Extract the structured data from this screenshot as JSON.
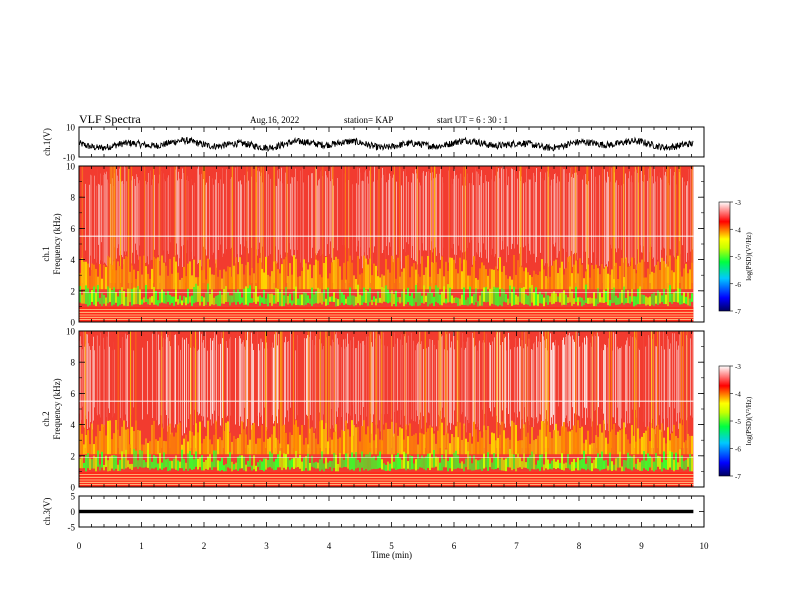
{
  "header": {
    "title": "VLF Spectra",
    "date": "Aug.16, 2022",
    "station": "station= KAP",
    "start": "start  UT =   6 : 30 : 1"
  },
  "chart_data": [
    {
      "type": "line",
      "panel": "ch1-waveform",
      "ylabel": "ch.1(V)",
      "ylim": [
        -10,
        10
      ],
      "ytick_labels": [
        "10",
        "-10"
      ],
      "xlim": [
        0,
        10
      ],
      "description_values": {
        "center": -1.5,
        "amplitude": 3.5,
        "end_time_min": 9.83
      }
    },
    {
      "type": "heatmap",
      "panel": "ch1-spectrogram",
      "ylabel_top": "ch.1",
      "ylabel": "Frequency (kHz)",
      "ylim": [
        0,
        10
      ],
      "ytick_labels": [
        "0",
        "2",
        "4",
        "6",
        "8",
        "10"
      ],
      "xlim": [
        0,
        10
      ],
      "end_time_min": 9.83,
      "colorbar": {
        "label": "log(PSD)(V²/Hz)",
        "range": [
          -7,
          -3
        ],
        "tick_labels": [
          "-3",
          "-4",
          "-5",
          "-6",
          "-7"
        ],
        "colors": [
          "#000080",
          "#0000ff",
          "#00c0ff",
          "#00ff40",
          "#c8ff00",
          "#ffff00",
          "#ff8000",
          "#ff0000",
          "#ffffff"
        ]
      }
    },
    {
      "type": "heatmap",
      "panel": "ch2-spectrogram",
      "ylabel_top": "ch.2",
      "ylabel": "Frequency (kHz)",
      "ylim": [
        0,
        10
      ],
      "ytick_labels": [
        "0",
        "2",
        "4",
        "6",
        "8",
        "10"
      ],
      "xlim": [
        0,
        10
      ],
      "end_time_min": 9.83,
      "colorbar": {
        "label": "log(PSD)(V²/Hz)",
        "range": [
          -7,
          -3
        ],
        "tick_labels": [
          "-3",
          "-4",
          "-5",
          "-6",
          "-7"
        ],
        "colors": [
          "#000080",
          "#0000ff",
          "#00c0ff",
          "#00ff40",
          "#c8ff00",
          "#ffff00",
          "#ff8000",
          "#ff0000",
          "#ffffff"
        ]
      }
    },
    {
      "type": "line",
      "panel": "ch3-waveform",
      "ylabel": "ch.3(V)",
      "ylim": [
        -5,
        5
      ],
      "ytick_labels": [
        "5",
        "0",
        "-5"
      ],
      "xlim": [
        0,
        10
      ],
      "xlabel": "Time  (min)",
      "xtick_labels": [
        "0",
        "1",
        "2",
        "3",
        "4",
        "5",
        "6",
        "7",
        "8",
        "9",
        "10"
      ],
      "description_values": {
        "center": 0,
        "amplitude": 0.6,
        "end_time_min": 9.83
      }
    }
  ]
}
